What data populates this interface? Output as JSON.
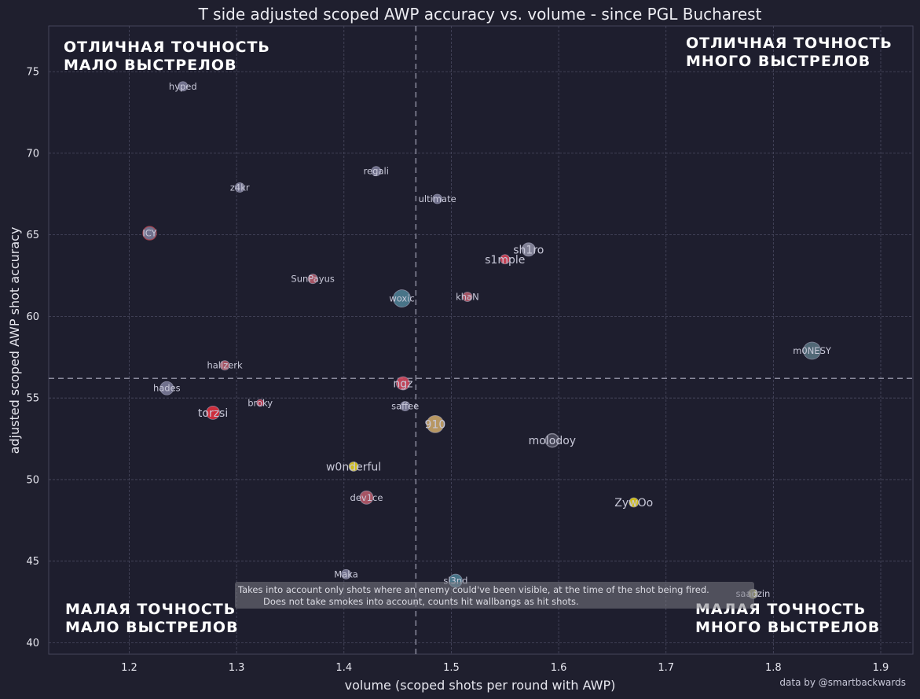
{
  "chart_data": {
    "type": "scatter",
    "title": "T side adjusted scoped AWP accuracy vs. volume - since PGL Bucharest",
    "xlabel": "volume (scoped shots per round with AWP)",
    "ylabel": "adjusted scoped AWP shot accuracy",
    "xlim": [
      1.125,
      1.93
    ],
    "ylim": [
      39.3,
      77.8
    ],
    "x_ticks": [
      "1.2",
      "1.3",
      "1.4",
      "1.5",
      "1.6",
      "1.7",
      "1.8",
      "1.9"
    ],
    "y_ticks": [
      "40",
      "45",
      "50",
      "55",
      "60",
      "65",
      "70",
      "75"
    ],
    "grid": true,
    "reference_lines": {
      "x_mean": 1.467,
      "y_mean": 56.2
    },
    "quadrant_labels": {
      "top_left": [
        "ОТЛИЧНАЯ ТОЧНОСТЬ",
        "МАЛО ВЫСТРЕЛОВ"
      ],
      "top_right": [
        "ОТЛИЧНАЯ ТОЧНОСТЬ",
        "МНОГО ВЫСТРЕЛОВ"
      ],
      "bottom_left": [
        "МАЛАЯ ТОЧНОСТЬ",
        "МАЛО ВЫСТРЕЛОВ"
      ],
      "bottom_right": [
        "МАЛАЯ ТОЧНОСТЬ",
        "МНОГО ВЫСТРЕЛОВ"
      ]
    },
    "note": [
      "Takes into account only shots where an enemy could've been visible, at the time of the shot being fired.",
      "Does not take smokes into account, counts hit wallbangs as hit shots."
    ],
    "credit": "data by @smartbackwards",
    "points": [
      {
        "name": "hyped",
        "x": 1.25,
        "y": 74.1,
        "color": "#7a7a98",
        "size": "small"
      },
      {
        "name": "regali",
        "x": 1.43,
        "y": 68.9,
        "color": "#7a7a98",
        "size": "small"
      },
      {
        "name": "z4kr",
        "x": 1.303,
        "y": 67.9,
        "color": "#7a7a98",
        "size": "small"
      },
      {
        "name": "ultimate",
        "x": 1.487,
        "y": 67.2,
        "color": "#7a7a98",
        "size": "small"
      },
      {
        "name": "ICY",
        "x": 1.219,
        "y": 65.1,
        "color": "#7a7a98",
        "ring": "#b54a55",
        "size": "medium"
      },
      {
        "name": "sh1ro",
        "x": 1.572,
        "y": 64.1,
        "color": "#8a8aa0",
        "size": "medium",
        "big": true
      },
      {
        "name": "s1mple",
        "x": 1.55,
        "y": 63.5,
        "color": "#d44458",
        "size": "small",
        "big": true
      },
      {
        "name": "SunPayus",
        "x": 1.371,
        "y": 62.3,
        "color": "#b55a6a",
        "size": "small"
      },
      {
        "name": "woxic",
        "x": 1.454,
        "y": 61.1,
        "color": "#4d7d92",
        "size": "large"
      },
      {
        "name": "khaN",
        "x": 1.515,
        "y": 61.2,
        "color": "#b55a6a",
        "size": "small"
      },
      {
        "name": "m0NESY",
        "x": 1.836,
        "y": 57.9,
        "color": "#57707e",
        "size": "large"
      },
      {
        "name": "hallzerk",
        "x": 1.289,
        "y": 57.0,
        "color": "#b55a6a",
        "size": "small"
      },
      {
        "name": "ngz",
        "x": 1.455,
        "y": 55.9,
        "color": "#d0485e",
        "size": "medium",
        "big": true
      },
      {
        "name": "hades",
        "x": 1.235,
        "y": 55.6,
        "color": "#7a7a98",
        "size": "medium"
      },
      {
        "name": "broky",
        "x": 1.322,
        "y": 54.7,
        "color": "#c23850",
        "size": "tiny"
      },
      {
        "name": "saffee",
        "x": 1.457,
        "y": 54.5,
        "color": "#7a7a98",
        "size": "small"
      },
      {
        "name": "torzsi",
        "x": 1.278,
        "y": 54.1,
        "color": "#e0303e",
        "size": "medium",
        "big": true
      },
      {
        "name": "910",
        "x": 1.485,
        "y": 53.4,
        "color": "#c8a468",
        "size": "large",
        "big": true
      },
      {
        "name": "molodoy",
        "x": 1.594,
        "y": 52.4,
        "color": "#4a4a5c",
        "ring": "#9898a8",
        "size": "medium",
        "big": true
      },
      {
        "name": "w0nderful",
        "x": 1.409,
        "y": 50.8,
        "color": "#e0cc1a",
        "size": "small",
        "big": true
      },
      {
        "name": "dev1ce",
        "x": 1.421,
        "y": 48.9,
        "color": "#b55a6a",
        "size": "medium"
      },
      {
        "name": "ZywOo",
        "x": 1.67,
        "y": 48.6,
        "color": "#e0cc1a",
        "size": "small",
        "big": true
      },
      {
        "name": "Maka",
        "x": 1.402,
        "y": 44.2,
        "color": "#7a7a98",
        "size": "small"
      },
      {
        "name": "sl3nd",
        "x": 1.504,
        "y": 43.8,
        "color": "#4d7d92",
        "size": "medium"
      },
      {
        "name": "saadzin",
        "x": 1.781,
        "y": 43.0,
        "color": "#9a9a70",
        "size": "small"
      }
    ]
  }
}
